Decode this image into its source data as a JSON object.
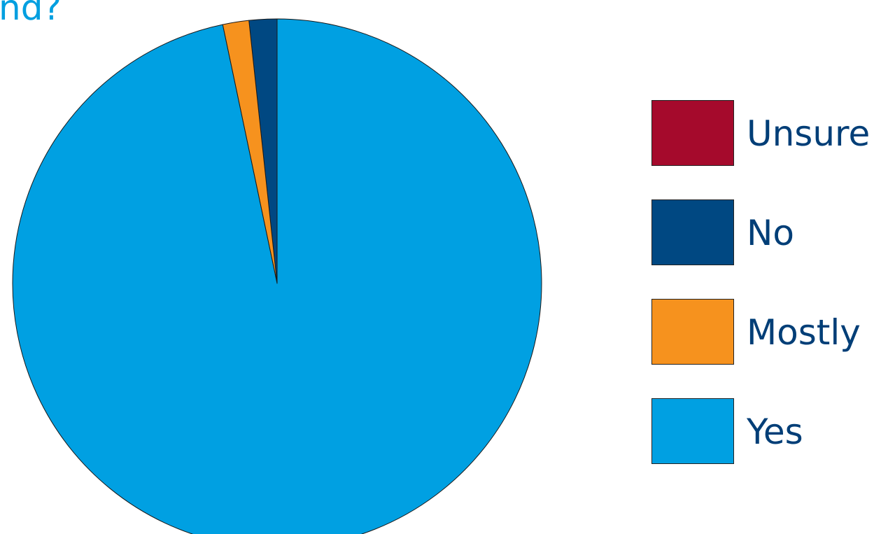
{
  "chart_data": {
    "type": "pie",
    "title": "nd?",
    "slices": [
      {
        "label": "Unsure",
        "value": 0.0,
        "color": "#a50a2c"
      },
      {
        "label": "No",
        "value": 1.7,
        "color": "#004882"
      },
      {
        "label": "Mostly",
        "value": 1.6,
        "color": "#f6921e"
      },
      {
        "label": "Yes",
        "value": 96.7,
        "color": "#00a0e2"
      }
    ],
    "start_angle_deg": 0,
    "direction": "counterclockwise",
    "stroke_color": "#1a1a1a",
    "legend_position": "right"
  }
}
